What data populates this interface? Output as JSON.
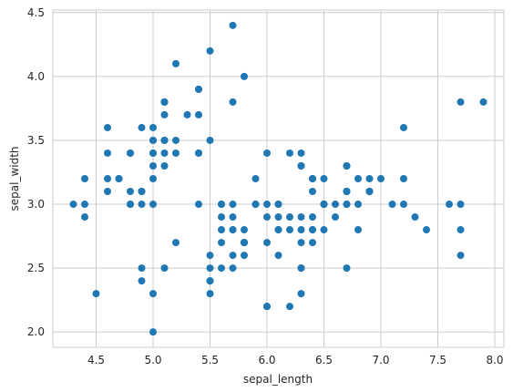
{
  "chart_data": {
    "type": "scatter",
    "xlabel": "sepal_length",
    "ylabel": "sepal_width",
    "xlim": [
      4.12,
      8.08
    ],
    "ylim": [
      1.88,
      4.52
    ],
    "xticks": [
      "4.5",
      "5.0",
      "5.5",
      "6.0",
      "6.5",
      "7.0",
      "7.5",
      "8.0"
    ],
    "yticks": [
      "2.0",
      "2.5",
      "3.0",
      "3.5",
      "4.0",
      "4.5"
    ],
    "grid": true,
    "marker_color": "#1f77b4",
    "points": [
      [
        5.1,
        3.5
      ],
      [
        4.9,
        3.0
      ],
      [
        4.7,
        3.2
      ],
      [
        4.6,
        3.1
      ],
      [
        5.0,
        3.6
      ],
      [
        5.4,
        3.9
      ],
      [
        4.6,
        3.4
      ],
      [
        5.0,
        3.4
      ],
      [
        4.4,
        2.9
      ],
      [
        4.9,
        3.1
      ],
      [
        5.4,
        3.7
      ],
      [
        4.8,
        3.4
      ],
      [
        4.8,
        3.0
      ],
      [
        4.3,
        3.0
      ],
      [
        5.8,
        4.0
      ],
      [
        5.7,
        4.4
      ],
      [
        5.4,
        3.9
      ],
      [
        5.1,
        3.5
      ],
      [
        5.7,
        3.8
      ],
      [
        5.1,
        3.8
      ],
      [
        5.4,
        3.4
      ],
      [
        5.1,
        3.7
      ],
      [
        4.6,
        3.6
      ],
      [
        5.1,
        3.3
      ],
      [
        4.8,
        3.4
      ],
      [
        5.0,
        3.0
      ],
      [
        5.0,
        3.4
      ],
      [
        5.2,
        3.5
      ],
      [
        5.2,
        3.4
      ],
      [
        4.7,
        3.2
      ],
      [
        4.8,
        3.1
      ],
      [
        5.4,
        3.4
      ],
      [
        5.2,
        4.1
      ],
      [
        5.5,
        4.2
      ],
      [
        4.9,
        3.1
      ],
      [
        5.0,
        3.2
      ],
      [
        5.5,
        3.5
      ],
      [
        4.9,
        3.6
      ],
      [
        4.4,
        3.0
      ],
      [
        5.1,
        3.4
      ],
      [
        5.0,
        3.5
      ],
      [
        4.5,
        2.3
      ],
      [
        4.4,
        3.2
      ],
      [
        5.0,
        3.5
      ],
      [
        5.1,
        3.8
      ],
      [
        4.8,
        3.0
      ],
      [
        5.1,
        3.8
      ],
      [
        4.6,
        3.2
      ],
      [
        5.3,
        3.7
      ],
      [
        5.0,
        3.3
      ],
      [
        7.0,
        3.2
      ],
      [
        6.4,
        3.2
      ],
      [
        6.9,
        3.1
      ],
      [
        5.5,
        2.3
      ],
      [
        6.5,
        2.8
      ],
      [
        5.7,
        2.8
      ],
      [
        6.3,
        3.3
      ],
      [
        4.9,
        2.4
      ],
      [
        6.6,
        2.9
      ],
      [
        5.2,
        2.7
      ],
      [
        5.0,
        2.0
      ],
      [
        5.9,
        3.0
      ],
      [
        6.0,
        2.2
      ],
      [
        6.1,
        2.9
      ],
      [
        5.6,
        2.9
      ],
      [
        6.7,
        3.1
      ],
      [
        5.6,
        3.0
      ],
      [
        5.8,
        2.7
      ],
      [
        6.2,
        2.2
      ],
      [
        5.6,
        2.5
      ],
      [
        5.9,
        3.2
      ],
      [
        6.1,
        2.8
      ],
      [
        6.3,
        2.5
      ],
      [
        6.1,
        2.8
      ],
      [
        6.4,
        2.9
      ],
      [
        6.6,
        3.0
      ],
      [
        6.8,
        2.8
      ],
      [
        6.7,
        3.0
      ],
      [
        6.0,
        2.9
      ],
      [
        5.7,
        2.6
      ],
      [
        5.5,
        2.4
      ],
      [
        5.5,
        2.4
      ],
      [
        5.8,
        2.7
      ],
      [
        6.0,
        2.7
      ],
      [
        5.4,
        3.0
      ],
      [
        6.0,
        3.4
      ],
      [
        6.7,
        3.1
      ],
      [
        6.3,
        2.3
      ],
      [
        5.6,
        3.0
      ],
      [
        5.5,
        2.5
      ],
      [
        5.5,
        2.6
      ],
      [
        6.1,
        3.0
      ],
      [
        5.8,
        2.6
      ],
      [
        5.0,
        2.3
      ],
      [
        5.6,
        2.7
      ],
      [
        5.7,
        3.0
      ],
      [
        5.7,
        2.9
      ],
      [
        6.2,
        2.9
      ],
      [
        5.1,
        2.5
      ],
      [
        5.7,
        2.8
      ],
      [
        6.3,
        3.3
      ],
      [
        5.8,
        2.7
      ],
      [
        7.1,
        3.0
      ],
      [
        6.3,
        2.9
      ],
      [
        6.5,
        3.0
      ],
      [
        7.6,
        3.0
      ],
      [
        4.9,
        2.5
      ],
      [
        7.3,
        2.9
      ],
      [
        6.7,
        2.5
      ],
      [
        7.2,
        3.6
      ],
      [
        6.5,
        3.2
      ],
      [
        6.4,
        2.7
      ],
      [
        6.8,
        3.0
      ],
      [
        5.7,
        2.5
      ],
      [
        5.8,
        2.8
      ],
      [
        6.4,
        3.2
      ],
      [
        6.5,
        3.0
      ],
      [
        7.7,
        3.8
      ],
      [
        7.7,
        2.6
      ],
      [
        6.0,
        2.2
      ],
      [
        6.9,
        3.2
      ],
      [
        5.6,
        2.8
      ],
      [
        7.7,
        2.8
      ],
      [
        6.3,
        2.7
      ],
      [
        6.7,
        3.3
      ],
      [
        7.2,
        3.2
      ],
      [
        6.2,
        2.8
      ],
      [
        6.1,
        3.0
      ],
      [
        6.4,
        2.8
      ],
      [
        7.2,
        3.0
      ],
      [
        7.4,
        2.8
      ],
      [
        7.9,
        3.8
      ],
      [
        6.4,
        2.8
      ],
      [
        6.3,
        2.8
      ],
      [
        6.1,
        2.6
      ],
      [
        7.7,
        3.0
      ],
      [
        6.3,
        3.4
      ],
      [
        6.4,
        3.1
      ],
      [
        6.0,
        3.0
      ],
      [
        6.9,
        3.1
      ],
      [
        6.7,
        3.1
      ],
      [
        6.9,
        3.1
      ],
      [
        5.8,
        2.7
      ],
      [
        6.8,
        3.2
      ],
      [
        6.7,
        3.3
      ],
      [
        6.7,
        3.0
      ],
      [
        6.3,
        2.5
      ],
      [
        6.5,
        3.0
      ],
      [
        6.2,
        3.4
      ],
      [
        5.9,
        3.0
      ]
    ]
  }
}
